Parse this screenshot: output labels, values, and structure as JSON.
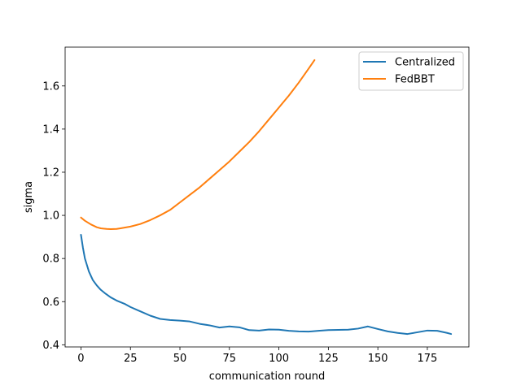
{
  "chart_data": {
    "type": "line",
    "title": "",
    "xlabel": "communication round",
    "ylabel": "sigma",
    "xlim": [
      -8,
      196
    ],
    "ylim": [
      0.39,
      1.78
    ],
    "xticks": [
      0,
      25,
      50,
      75,
      100,
      125,
      150,
      175
    ],
    "yticks": [
      0.4,
      0.6,
      0.8,
      1.0,
      1.2,
      1.4,
      1.6
    ],
    "ytick_labels": [
      "0.4",
      "0.6",
      "0.8",
      "1.0",
      "1.2",
      "1.4",
      "1.6"
    ],
    "grid": false,
    "legend_position": "top-right",
    "series": [
      {
        "name": "Centralized",
        "color": "#1f77b4",
        "x": [
          0,
          1,
          2,
          3,
          4,
          5,
          6,
          8,
          10,
          12,
          15,
          18,
          22,
          25,
          30,
          35,
          40,
          45,
          50,
          55,
          60,
          65,
          70,
          75,
          80,
          85,
          90,
          95,
          100,
          105,
          110,
          115,
          120,
          125,
          130,
          135,
          140,
          145,
          150,
          155,
          160,
          165,
          170,
          175,
          180,
          185,
          187
        ],
        "values": [
          0.91,
          0.85,
          0.8,
          0.77,
          0.74,
          0.72,
          0.7,
          0.675,
          0.655,
          0.64,
          0.62,
          0.605,
          0.59,
          0.575,
          0.555,
          0.535,
          0.52,
          0.515,
          0.512,
          0.508,
          0.497,
          0.49,
          0.48,
          0.485,
          0.481,
          0.468,
          0.466,
          0.471,
          0.47,
          0.465,
          0.462,
          0.461,
          0.465,
          0.468,
          0.469,
          0.47,
          0.475,
          0.485,
          0.473,
          0.462,
          0.455,
          0.45,
          0.458,
          0.466,
          0.465,
          0.455,
          0.45
        ]
      },
      {
        "name": "FedBBT",
        "color": "#ff7f0e",
        "x": [
          0,
          2,
          5,
          8,
          10,
          13,
          15,
          18,
          20,
          25,
          30,
          35,
          40,
          45,
          50,
          55,
          60,
          65,
          70,
          75,
          80,
          85,
          90,
          95,
          100,
          105,
          110,
          115,
          118
        ],
        "values": [
          0.99,
          0.975,
          0.958,
          0.945,
          0.94,
          0.937,
          0.936,
          0.937,
          0.94,
          0.948,
          0.96,
          0.978,
          1.0,
          1.025,
          1.06,
          1.095,
          1.13,
          1.17,
          1.21,
          1.25,
          1.295,
          1.34,
          1.39,
          1.445,
          1.5,
          1.555,
          1.615,
          1.68,
          1.72
        ]
      }
    ]
  }
}
